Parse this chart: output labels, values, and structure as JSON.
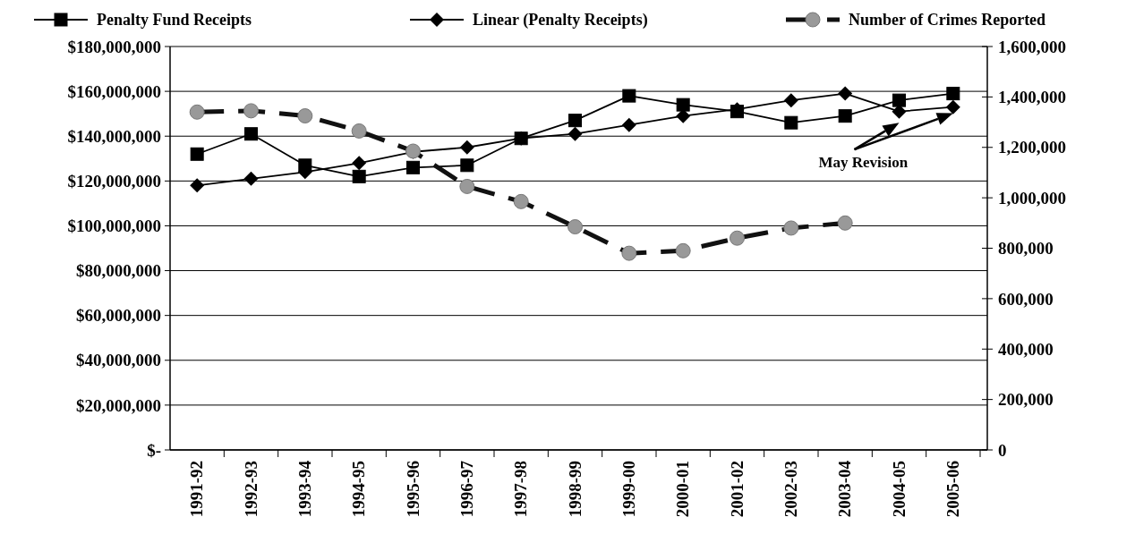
{
  "chart_data": {
    "type": "line",
    "categories": [
      "1991-92",
      "1992-93",
      "1993-94",
      "1994-95",
      "1995-96",
      "1996-97",
      "1997-98",
      "1998-99",
      "1999-00",
      "2000-01",
      "2001-02",
      "2002-03",
      "2003-04",
      "2004-05",
      "2005-06"
    ],
    "series": [
      {
        "name": "Penalty Fund Receipts",
        "color": "#000000",
        "marker": "square",
        "line_style": "solid",
        "values": [
          132000000,
          141000000,
          127000000,
          122000000,
          126000000,
          127000000,
          139000000,
          147000000,
          158000000,
          154000000,
          151000000,
          146000000,
          149000000,
          156000000,
          159000000
        ]
      },
      {
        "name": "Linear (Penalty Receipts)",
        "color": "#000000",
        "marker": "diamond",
        "line_style": "solid",
        "values": [
          118000000,
          121000000,
          124000000,
          128000000,
          133000000,
          135000000,
          139000000,
          141000000,
          145000000,
          149000000,
          152000000,
          156000000,
          159000000,
          151000000,
          153000000
        ]
      },
      {
        "name": "Number of Crimes Reported",
        "color": "#999999",
        "marker": "circle",
        "line_style": "dashed",
        "axis": "y2",
        "values": [
          1340000,
          1345000,
          1325000,
          1265000,
          1185000,
          1045000,
          985000,
          885000,
          780000,
          790000,
          840000,
          880000,
          900000,
          null,
          null
        ]
      }
    ],
    "ylim": [
      0,
      180000000
    ],
    "yticks": [
      {
        "value": 0,
        "label": "$-"
      },
      {
        "value": 20000000,
        "label": "$20,000,000"
      },
      {
        "value": 40000000,
        "label": "$40,000,000"
      },
      {
        "value": 60000000,
        "label": "$60,000,000"
      },
      {
        "value": 80000000,
        "label": "$80,000,000"
      },
      {
        "value": 100000000,
        "label": "$100,000,000"
      },
      {
        "value": 120000000,
        "label": "$120,000,000"
      },
      {
        "value": 140000000,
        "label": "$140,000,000"
      },
      {
        "value": 160000000,
        "label": "$160,000,000"
      },
      {
        "value": 180000000,
        "label": "$180,000,000"
      }
    ],
    "y2lim": [
      0,
      1600000
    ],
    "y2ticks": [
      {
        "value": 0,
        "label": "0"
      },
      {
        "value": 200000,
        "label": "200,000"
      },
      {
        "value": 400000,
        "label": "400,000"
      },
      {
        "value": 600000,
        "label": "600,000"
      },
      {
        "value": 800000,
        "label": "800,000"
      },
      {
        "value": 1000000,
        "label": "1,000,000"
      },
      {
        "value": 1200000,
        "label": "1,200,000"
      },
      {
        "value": 1400000,
        "label": "1,400,000"
      },
      {
        "value": 1600000,
        "label": "1,600,000"
      }
    ],
    "annotations": [
      "May Revision"
    ],
    "grid": "y",
    "legend": "top"
  }
}
